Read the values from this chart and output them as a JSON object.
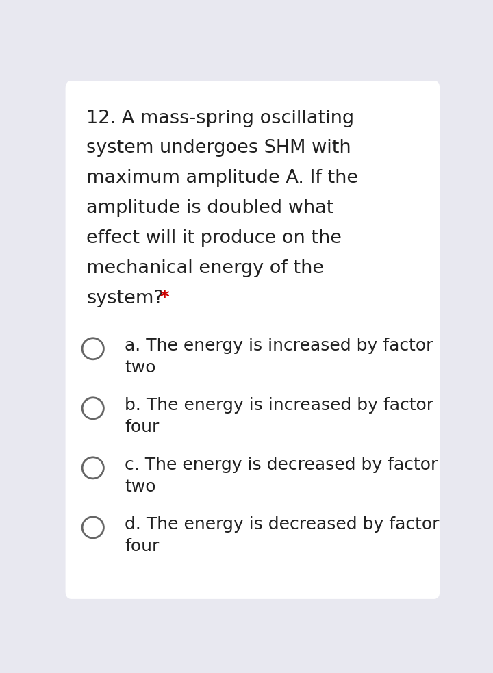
{
  "background_color": "#e8e8f0",
  "card_color": "#ffffff",
  "question_text_lines": [
    "12. A mass-spring oscillating",
    "system undergoes SHM with",
    "maximum amplitude A. If the",
    "amplitude is doubled what",
    "effect will it produce on the",
    "mechanical energy of the",
    "system?"
  ],
  "asterisk": " *",
  "asterisk_color": "#cc0000",
  "options": [
    [
      "a. The energy is increased by factor",
      "two"
    ],
    [
      "b. The energy is increased by factor",
      "four"
    ],
    [
      "c. The energy is decreased by factor",
      "two"
    ],
    [
      "d. The energy is decreased by factor",
      "four"
    ]
  ],
  "text_color": "#212121",
  "question_fontsize": 19.5,
  "option_fontsize": 18,
  "circle_color": "#666666",
  "fig_width": 7.2,
  "fig_height": 9.83
}
